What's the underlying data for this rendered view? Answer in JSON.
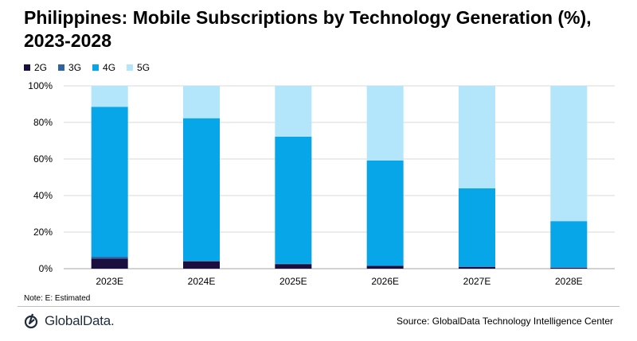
{
  "title": "Philippines: Mobile Subscriptions by Technology Generation (%), 2023-2028",
  "note": "Note: E: Estimated",
  "source": "Source: GlobalData Technology Intelligence Center",
  "logo": {
    "text": "GlobalData."
  },
  "colors": {
    "2G": "#1b0f3f",
    "3G": "#2e63a4",
    "4G": "#06a6e8",
    "5G": "#b3e6fa",
    "grid": "#d9d9d9",
    "axis": "#a6a6a6"
  },
  "chart_data": {
    "type": "bar",
    "stacked": true,
    "title": "Philippines: Mobile Subscriptions by Technology Generation (%), 2023-2028",
    "xlabel": "",
    "ylabel": "",
    "ylim": [
      0,
      100
    ],
    "yticks": [
      "0%",
      "20%",
      "40%",
      "60%",
      "80%",
      "100%"
    ],
    "categories": [
      "2023E",
      "2024E",
      "2025E",
      "2026E",
      "2027E",
      "2028E"
    ],
    "series": [
      {
        "name": "2G",
        "values": [
          5.5,
          4.0,
          2.5,
          1.5,
          1.0,
          0.5
        ]
      },
      {
        "name": "3G",
        "values": [
          1.0,
          0.3,
          0.2,
          0.2,
          0.2,
          0.2
        ]
      },
      {
        "name": "4G",
        "values": [
          82.0,
          78.0,
          69.5,
          57.5,
          42.8,
          25.3
        ]
      },
      {
        "name": "5G",
        "values": [
          11.5,
          17.7,
          27.8,
          40.8,
          56.0,
          74.0
        ]
      }
    ],
    "legend_position": "top-left",
    "grid": true
  }
}
